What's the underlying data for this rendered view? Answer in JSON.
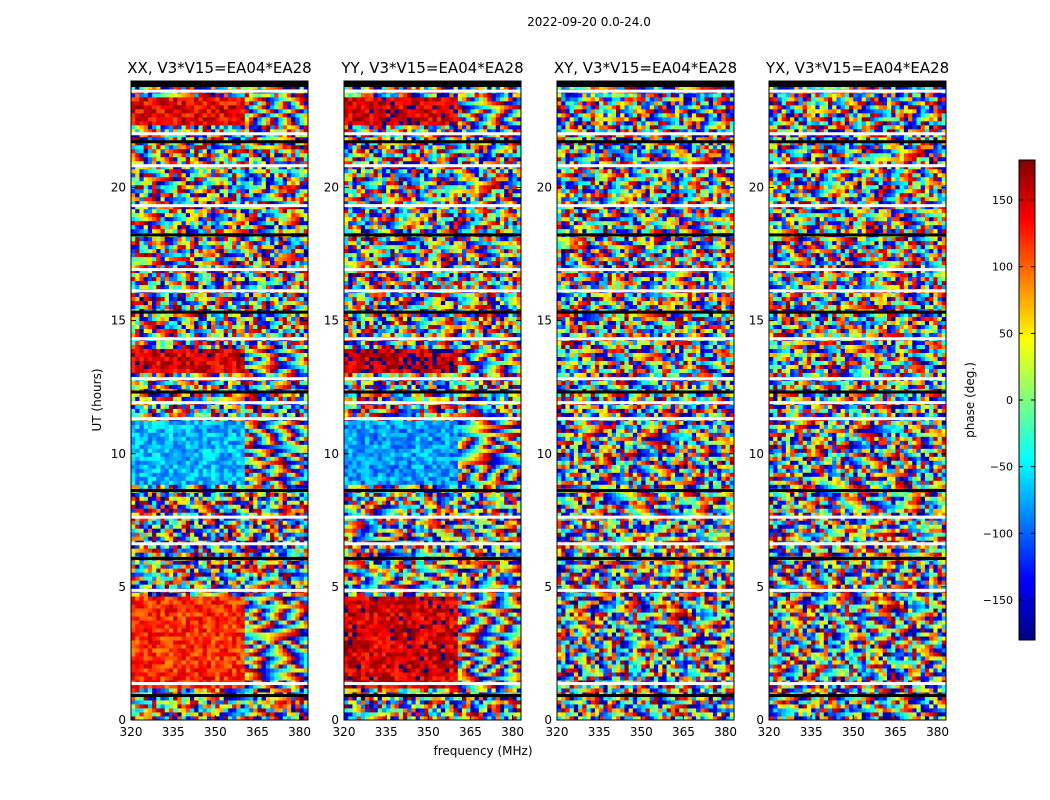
{
  "figure_title": "2022-09-20 0.0-24.0",
  "colorbar": {
    "label": "phase (deg.)",
    "ticks": [
      150,
      100,
      50,
      0,
      -50,
      -100,
      -150
    ],
    "tick_labels": [
      "150",
      "100",
      "50",
      "0",
      "−50",
      "−100",
      "−150"
    ],
    "range": [
      -180,
      180
    ],
    "colormap": [
      "#00007f",
      "#0000ff",
      "#007fff",
      "#00ffff",
      "#7fff7f",
      "#ffff00",
      "#ff7f00",
      "#ff0000",
      "#7f0000"
    ]
  },
  "chart_data": {
    "type": "heatmap",
    "title": "2022-09-20 0.0-24.0",
    "xlabel": "frequency (MHz)",
    "ylabel": "UT (hours)",
    "xlim": [
      320,
      383
    ],
    "ylim": [
      0,
      24
    ],
    "x_ticks": [
      320,
      335,
      350,
      365,
      380
    ],
    "y_ticks": [
      0,
      5,
      10,
      15,
      20
    ],
    "value_label": "phase (deg.)",
    "value_range": [
      -180,
      180
    ],
    "panels": [
      {
        "name": "XX",
        "title": "XX, V3*V15=EA04*EA28",
        "coherent_blocks": [
          {
            "t0": 1.2,
            "t1": 4.7,
            "f0": 320,
            "f1": 361,
            "phase": 120
          },
          {
            "t0": 8.8,
            "t1": 11.2,
            "f0": 320,
            "f1": 361,
            "phase": -70
          },
          {
            "t0": 13.0,
            "t1": 14.0,
            "f0": 320,
            "f1": 361,
            "phase": 150
          },
          {
            "t0": 22.4,
            "t1": 23.4,
            "f0": 320,
            "f1": 361,
            "phase": 140
          }
        ]
      },
      {
        "name": "YY",
        "title": "YY, V3*V15=EA04*EA28",
        "coherent_blocks": [
          {
            "t0": 1.2,
            "t1": 4.7,
            "f0": 320,
            "f1": 361,
            "phase": 150
          },
          {
            "t0": 8.8,
            "t1": 11.2,
            "f0": 320,
            "f1": 361,
            "phase": -80
          },
          {
            "t0": 13.0,
            "t1": 14.0,
            "f0": 320,
            "f1": 361,
            "phase": 160
          },
          {
            "t0": 22.4,
            "t1": 23.4,
            "f0": 320,
            "f1": 361,
            "phase": 150
          }
        ]
      },
      {
        "name": "XY",
        "title": "XY, V3*V15=EA04*EA28",
        "coherent_blocks": []
      },
      {
        "name": "YX",
        "title": "YX, V3*V15=EA04*EA28",
        "coherent_blocks": []
      }
    ],
    "flagged_gaps_hours": [
      0.9,
      1.35,
      4.85,
      6.05,
      6.6,
      7.6,
      8.6,
      11.3,
      11.9,
      12.3,
      12.8,
      14.3,
      15.3,
      16.1,
      16.9,
      18.2,
      19.3,
      20.8,
      21.7,
      22.0,
      23.6
    ]
  }
}
